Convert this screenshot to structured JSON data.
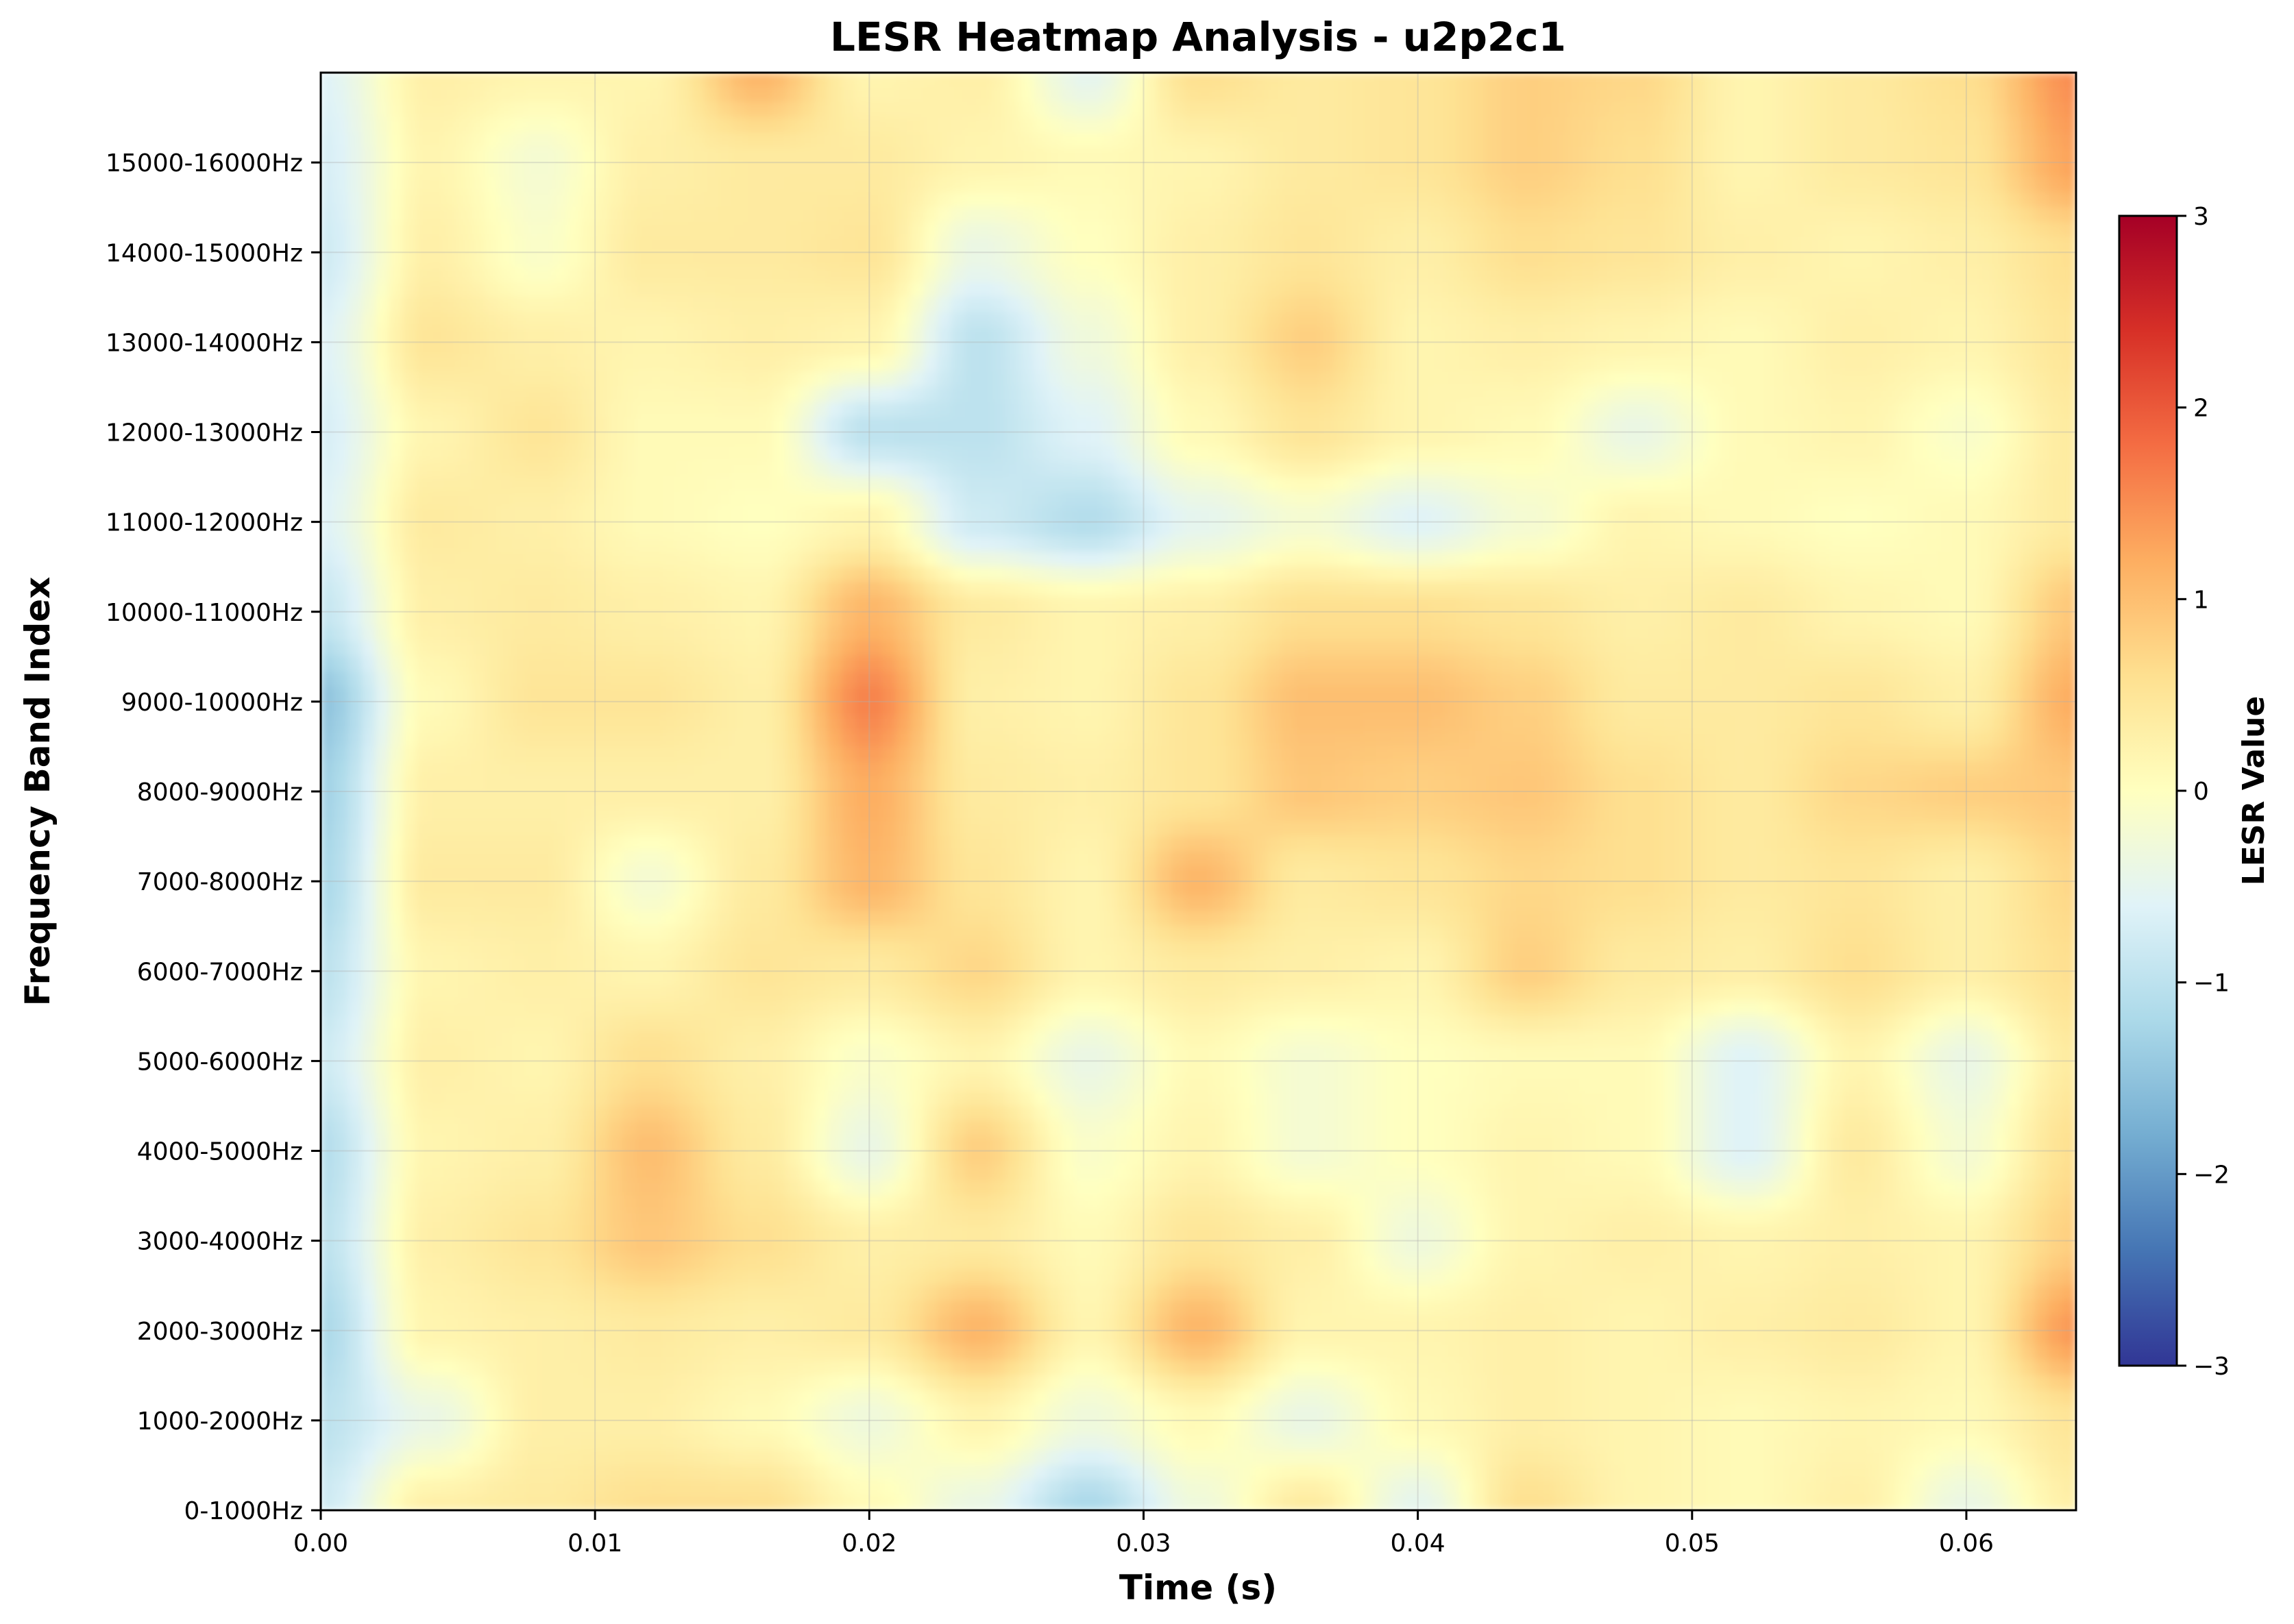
{
  "chart_data": {
    "type": "heatmap",
    "title": "LESR Heatmap Analysis - u2p2c1",
    "xlabel": "Time (s)",
    "ylabel": "Frequency Band Index",
    "xlim": [
      0,
      0.064
    ],
    "x_ticks": [
      "0.00",
      "0.01",
      "0.02",
      "0.03",
      "0.04",
      "0.05",
      "0.06"
    ],
    "x_tick_values": [
      0,
      0.01,
      0.02,
      0.03,
      0.04,
      0.05,
      0.06
    ],
    "y_ticks": [
      "0-1000Hz",
      "1000-2000Hz",
      "2000-3000Hz",
      "3000-4000Hz",
      "4000-5000Hz",
      "5000-6000Hz",
      "6000-7000Hz",
      "7000-8000Hz",
      "8000-9000Hz",
      "9000-10000Hz",
      "10000-11000Hz",
      "11000-12000Hz",
      "12000-13000Hz",
      "13000-14000Hz",
      "14000-15000Hz",
      "15000-16000Hz"
    ],
    "grid": true,
    "colormap": "RdYlBu_r",
    "colorbar": {
      "label": "LESR Value",
      "range": [
        -3,
        3
      ],
      "ticks": [
        3,
        2,
        1,
        0,
        -1,
        -2,
        -3
      ],
      "tick_labels": [
        "3",
        "2",
        "1",
        "0",
        "−1",
        "−2",
        "−3"
      ]
    },
    "colors": {
      "stops": [
        [
          0.0,
          "#313695"
        ],
        [
          0.1,
          "#4575b4"
        ],
        [
          0.2,
          "#74add1"
        ],
        [
          0.3,
          "#abd9e9"
        ],
        [
          0.4,
          "#e0f3f8"
        ],
        [
          0.5,
          "#ffffbf"
        ],
        [
          0.6,
          "#fee090"
        ],
        [
          0.7,
          "#fdae61"
        ],
        [
          0.8,
          "#f46d43"
        ],
        [
          0.9,
          "#d73027"
        ],
        [
          1.0,
          "#a50026"
        ]
      ]
    },
    "x_times": [
      0.0,
      0.004,
      0.008,
      0.012,
      0.016,
      0.02,
      0.024,
      0.028,
      0.032,
      0.036,
      0.04,
      0.044,
      0.048,
      0.052,
      0.056,
      0.06,
      0.064
    ],
    "y_levels": [
      0,
      1,
      2,
      3,
      4,
      5,
      6,
      7,
      8,
      9,
      10,
      11,
      12,
      13,
      14,
      15,
      16
    ],
    "z": [
      [
        -0.8,
        0.3,
        0.4,
        0.6,
        0.6,
        0.1,
        -0.4,
        -1.2,
        -0.3,
        0.4,
        -0.5,
        0.6,
        0.2,
        0.1,
        0.3,
        -0.4,
        0.3
      ],
      [
        -1.0,
        -0.4,
        0.3,
        0.3,
        0.1,
        -0.3,
        0.2,
        -0.3,
        0.1,
        -0.4,
        0.1,
        0.3,
        0.2,
        0.1,
        0.2,
        0.1,
        0.5
      ],
      [
        -1.2,
        0.2,
        0.3,
        0.4,
        0.3,
        0.4,
        1.1,
        0.2,
        1.1,
        0.2,
        0.2,
        0.3,
        0.2,
        0.3,
        0.4,
        0.2,
        1.4
      ],
      [
        -1.0,
        0.3,
        0.5,
        0.9,
        0.6,
        0.3,
        0.4,
        0.1,
        0.5,
        0.3,
        -0.3,
        0.2,
        0.3,
        0.2,
        0.3,
        0.2,
        0.8
      ],
      [
        -1.1,
        0.2,
        0.3,
        1.0,
        0.4,
        -0.4,
        0.8,
        -0.1,
        0.2,
        -0.2,
        0.0,
        0.2,
        0.1,
        -0.6,
        0.4,
        -0.2,
        0.6
      ],
      [
        -0.8,
        0.3,
        0.2,
        0.6,
        0.3,
        -0.1,
        0.2,
        -0.4,
        0.1,
        -0.2,
        0.0,
        0.1,
        0.1,
        -0.6,
        0.2,
        -0.4,
        0.4
      ],
      [
        -1.0,
        0.2,
        0.3,
        0.2,
        0.5,
        0.4,
        0.7,
        0.2,
        0.4,
        0.3,
        0.2,
        0.8,
        0.4,
        0.3,
        0.6,
        0.3,
        0.6
      ],
      [
        -1.2,
        0.4,
        0.4,
        -0.2,
        0.4,
        1.1,
        0.5,
        0.2,
        1.1,
        0.4,
        0.5,
        0.7,
        0.6,
        0.4,
        0.5,
        0.3,
        0.7
      ],
      [
        -1.3,
        0.3,
        0.3,
        0.3,
        0.3,
        1.2,
        0.4,
        0.3,
        0.5,
        0.9,
        0.8,
        0.9,
        0.6,
        0.4,
        0.7,
        0.8,
        0.9
      ],
      [
        -1.5,
        0.1,
        0.5,
        0.5,
        0.3,
        1.6,
        0.3,
        0.2,
        0.5,
        1.0,
        1.0,
        0.8,
        0.4,
        0.4,
        0.5,
        0.3,
        1.2
      ],
      [
        -0.9,
        0.3,
        0.4,
        0.3,
        0.2,
        1.1,
        0.4,
        0.2,
        0.3,
        0.6,
        0.6,
        0.5,
        0.3,
        0.4,
        0.2,
        0.1,
        0.9
      ],
      [
        -0.6,
        0.4,
        0.3,
        0.1,
        0.0,
        0.2,
        -0.8,
        -1.1,
        -0.5,
        -0.2,
        -0.6,
        -0.2,
        0.2,
        0.1,
        0.0,
        0.1,
        0.4
      ],
      [
        -0.7,
        0.2,
        0.5,
        0.1,
        0.1,
        -1.0,
        -1.0,
        -0.6,
        0.1,
        0.5,
        0.2,
        0.1,
        -0.4,
        0.1,
        0.2,
        -0.1,
        0.4
      ],
      [
        -0.6,
        0.5,
        0.3,
        0.2,
        0.3,
        0.2,
        -1.0,
        -0.3,
        0.3,
        0.8,
        0.2,
        0.3,
        0.2,
        0.1,
        0.3,
        0.2,
        0.5
      ],
      [
        -0.8,
        0.3,
        -0.1,
        0.4,
        0.4,
        0.5,
        -0.4,
        0.0,
        0.3,
        0.5,
        0.3,
        0.6,
        0.5,
        0.3,
        0.2,
        0.3,
        0.6
      ],
      [
        -0.7,
        0.2,
        -0.2,
        0.3,
        0.4,
        0.4,
        0.2,
        0.1,
        0.2,
        0.4,
        0.5,
        0.8,
        0.6,
        0.2,
        0.4,
        0.5,
        1.3
      ],
      [
        -0.6,
        0.3,
        0.2,
        0.2,
        1.1,
        0.2,
        0.3,
        -0.5,
        0.6,
        0.4,
        0.5,
        0.8,
        0.7,
        0.2,
        0.4,
        0.6,
        1.5
      ]
    ]
  }
}
